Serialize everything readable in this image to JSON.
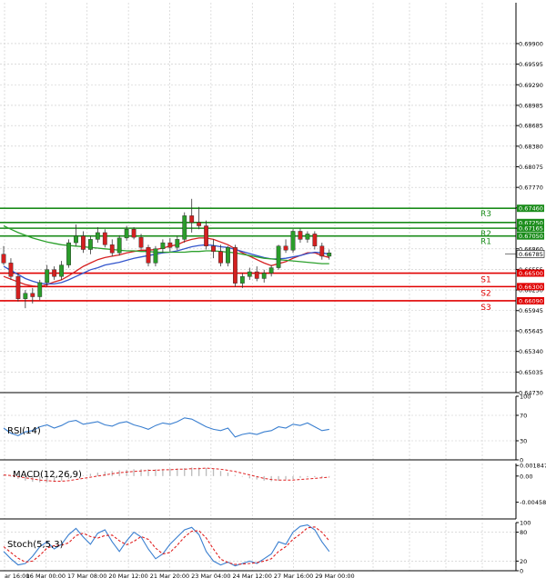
{
  "chart_data": [
    {
      "panel": "main",
      "type": "candlestick",
      "grid": true,
      "ylim": [
        0.6473,
        0.70505
      ],
      "y_ticks": [
        "0.69900",
        "0.69595",
        "0.69290",
        "0.68985",
        "0.68685",
        "0.68380",
        "0.68075",
        "0.67770",
        "0.67465",
        "0.67165",
        "0.66860",
        "0.66555",
        "0.66250",
        "0.65945",
        "0.65645",
        "0.65340",
        "0.65035",
        "0.64730"
      ],
      "x_labels": [
        "ar 16:00",
        "16 Mar 00:00",
        "17 Mar 08:00",
        "20 Mar 12:00",
        "21 Mar 20:00",
        "23 Mar 04:00",
        "24 Mar 12:00",
        "27 Mar 16:00",
        "29 Mar 00:00"
      ],
      "levels": [
        {
          "name": "R3",
          "value": 0.6746,
          "label": "0.67460",
          "color": "#1a8c1a"
        },
        {
          "name": "",
          "value": 0.6725,
          "label": "0.67250",
          "color": "#1a8c1a"
        },
        {
          "name": "R2",
          "value": 0.67165,
          "label": "0.67165",
          "color": "#1a8c1a"
        },
        {
          "name": "R1",
          "value": 0.6705,
          "label": "0.67050",
          "color": "#1a8c1a"
        },
        {
          "name": "S1",
          "value": 0.665,
          "label": "0.66500",
          "color": "#e00000"
        },
        {
          "name": "S2",
          "value": 0.663,
          "label": "0.66300",
          "color": "#e00000"
        },
        {
          "name": "S3",
          "value": 0.6609,
          "label": "0.66090",
          "color": "#e00000"
        }
      ],
      "last_price": {
        "value": 0.66785,
        "label": "0.66785"
      },
      "candles": [
        [
          0.6678,
          0.669,
          0.6662,
          0.6665
        ],
        [
          0.6665,
          0.6672,
          0.664,
          0.6645
        ],
        [
          0.6645,
          0.665,
          0.6608,
          0.6612
        ],
        [
          0.6612,
          0.6625,
          0.6598,
          0.662
        ],
        [
          0.662,
          0.6628,
          0.6605,
          0.6615
        ],
        [
          0.6615,
          0.664,
          0.661,
          0.6636
        ],
        [
          0.6636,
          0.6662,
          0.663,
          0.6655
        ],
        [
          0.6655,
          0.666,
          0.664,
          0.6645
        ],
        [
          0.6645,
          0.6668,
          0.664,
          0.6662
        ],
        [
          0.6662,
          0.67,
          0.6658,
          0.6695
        ],
        [
          0.6695,
          0.6722,
          0.669,
          0.6705
        ],
        [
          0.6705,
          0.6712,
          0.668,
          0.6685
        ],
        [
          0.6685,
          0.6705,
          0.6678,
          0.67
        ],
        [
          0.67,
          0.6718,
          0.6695,
          0.671
        ],
        [
          0.671,
          0.6715,
          0.6688,
          0.6692
        ],
        [
          0.6692,
          0.67,
          0.6675,
          0.668
        ],
        [
          0.668,
          0.6706,
          0.6676,
          0.6702
        ],
        [
          0.6702,
          0.672,
          0.6698,
          0.6715
        ],
        [
          0.6715,
          0.6718,
          0.67,
          0.6703
        ],
        [
          0.6703,
          0.6708,
          0.6685,
          0.6688
        ],
        [
          0.6688,
          0.6692,
          0.666,
          0.6665
        ],
        [
          0.6665,
          0.669,
          0.666,
          0.6686
        ],
        [
          0.6686,
          0.67,
          0.668,
          0.6695
        ],
        [
          0.6695,
          0.6702,
          0.6682,
          0.6688
        ],
        [
          0.6688,
          0.6705,
          0.6684,
          0.67
        ],
        [
          0.67,
          0.674,
          0.6695,
          0.6735
        ],
        [
          0.6735,
          0.676,
          0.671,
          0.6725
        ],
        [
          0.6725,
          0.6748,
          0.6715,
          0.672
        ],
        [
          0.672,
          0.6728,
          0.6685,
          0.669
        ],
        [
          0.669,
          0.67,
          0.6672,
          0.6682
        ],
        [
          0.6682,
          0.6692,
          0.666,
          0.6665
        ],
        [
          0.6665,
          0.669,
          0.666,
          0.6688
        ],
        [
          0.6688,
          0.6692,
          0.663,
          0.6635
        ],
        [
          0.6635,
          0.665,
          0.6628,
          0.6645
        ],
        [
          0.6645,
          0.6658,
          0.664,
          0.6652
        ],
        [
          0.6652,
          0.666,
          0.6638,
          0.6642
        ],
        [
          0.6642,
          0.6655,
          0.6636,
          0.665
        ],
        [
          0.665,
          0.6662,
          0.6645,
          0.6658
        ],
        [
          0.6658,
          0.6692,
          0.6655,
          0.669
        ],
        [
          0.669,
          0.67,
          0.668,
          0.6684
        ],
        [
          0.6684,
          0.6715,
          0.668,
          0.6712
        ],
        [
          0.6712,
          0.6716,
          0.6695,
          0.67
        ],
        [
          0.67,
          0.6712,
          0.6695,
          0.6708
        ],
        [
          0.6708,
          0.6712,
          0.6685,
          0.669
        ],
        [
          0.669,
          0.6695,
          0.667,
          0.6675
        ],
        [
          0.6675,
          0.6685,
          0.667,
          0.668
        ]
      ],
      "lines": [
        {
          "color": "#d62020",
          "values": [
            0.6645,
            0.6641,
            0.6637,
            0.6633,
            0.6631,
            0.663,
            0.6633,
            0.6637,
            0.664,
            0.6646,
            0.6653,
            0.666,
            0.6665,
            0.667,
            0.6673,
            0.6675,
            0.6677,
            0.668,
            0.6682,
            0.6684,
            0.6684,
            0.6685,
            0.6687,
            0.669,
            0.6692,
            0.6697,
            0.67,
            0.6702,
            0.6702,
            0.67,
            0.6696,
            0.6692,
            0.6686,
            0.668,
            0.6675,
            0.667,
            0.6665,
            0.6661,
            0.6664,
            0.6667,
            0.6672,
            0.6676,
            0.668,
            0.668,
            0.6676,
            0.6673
          ]
        },
        {
          "color": "#3355cc",
          "values": [
            0.666,
            0.6654,
            0.6648,
            0.6642,
            0.6638,
            0.6635,
            0.6634,
            0.6634,
            0.6636,
            0.664,
            0.6645,
            0.665,
            0.6655,
            0.6658,
            0.6662,
            0.6664,
            0.6666,
            0.6669,
            0.6672,
            0.6674,
            0.6676,
            0.6678,
            0.668,
            0.6681,
            0.6683,
            0.6686,
            0.6689,
            0.6691,
            0.6692,
            0.6691,
            0.6689,
            0.6688,
            0.6685,
            0.6682,
            0.6679,
            0.6676,
            0.6673,
            0.6671,
            0.6671,
            0.6672,
            0.6674,
            0.6676,
            0.6679,
            0.6681,
            0.668,
            0.6678
          ]
        },
        {
          "color": "#2ca02c",
          "values": [
            0.672,
            0.6715,
            0.671,
            0.6706,
            0.6702,
            0.6699,
            0.6696,
            0.6694,
            0.6692,
            0.6691,
            0.669,
            0.6689,
            0.6688,
            0.6687,
            0.6686,
            0.6685,
            0.6684,
            0.6683,
            0.6683,
            0.6682,
            0.6682,
            0.6681,
            0.6681,
            0.6681,
            0.6681,
            0.6681,
            0.6682,
            0.6682,
            0.6683,
            0.6683,
            0.6682,
            0.6681,
            0.668,
            0.6678,
            0.6676,
            0.6674,
            0.6672,
            0.6671,
            0.667,
            0.6669,
            0.6668,
            0.6667,
            0.6666,
            0.6665,
            0.6664,
            0.6664
          ]
        }
      ]
    },
    {
      "panel": "rsi",
      "type": "line",
      "title": "RSI(14)",
      "ylim": [
        0,
        100
      ],
      "y_ticks": [
        "100",
        "70",
        "30",
        "0"
      ],
      "levels": [
        70,
        30
      ],
      "series": [
        {
          "color": "#3a7fd0",
          "values": [
            50,
            42,
            38,
            44,
            46,
            52,
            55,
            50,
            54,
            60,
            62,
            56,
            58,
            60,
            55,
            53,
            58,
            60,
            55,
            52,
            48,
            54,
            58,
            56,
            60,
            66,
            64,
            58,
            52,
            48,
            46,
            50,
            36,
            40,
            42,
            40,
            44,
            46,
            52,
            50,
            56,
            54,
            58,
            52,
            46,
            48
          ]
        }
      ]
    },
    {
      "panel": "macd",
      "type": "bar",
      "title": "MACD(12,26,9)",
      "ylim": [
        -0.0075,
        0.0022
      ],
      "y_ticks": [
        "0.001847",
        "0.00",
        "-0.00458"
      ],
      "histogram": [
        0.0002,
        -0.0001,
        -0.0005,
        -0.0008,
        -0.001,
        -0.0011,
        -0.0011,
        -0.001,
        -0.0008,
        -0.0005,
        -0.0002,
        0.0001,
        0.0004,
        0.0006,
        0.0008,
        0.0009,
        0.001,
        0.0011,
        0.0012,
        0.0012,
        0.0012,
        0.0012,
        0.0012,
        0.0013,
        0.0013,
        0.0014,
        0.0015,
        0.0015,
        0.0014,
        0.0012,
        0.0009,
        0.0006,
        0.0002,
        -0.0001,
        -0.0004,
        -0.0006,
        -0.0008,
        -0.0009,
        -0.0008,
        -0.0006,
        -0.0005,
        -0.0003,
        -0.0002,
        -0.0002,
        -0.0002,
        -0.0001
      ],
      "signal": [
        0.0002,
        0.0001,
        -0.0001,
        -0.0003,
        -0.0005,
        -0.0007,
        -0.0008,
        -0.0009,
        -0.0009,
        -0.0008,
        -0.0006,
        -0.0004,
        -0.0002,
        0.0,
        0.0002,
        0.0004,
        0.0006,
        0.0007,
        0.0008,
        0.0009,
        0.001,
        0.001,
        0.0011,
        0.0011,
        0.0012,
        0.0012,
        0.0013,
        0.0013,
        0.0014,
        0.0013,
        0.0012,
        0.001,
        0.0008,
        0.0005,
        0.0002,
        -0.0001,
        -0.0004,
        -0.0006,
        -0.0007,
        -0.0007,
        -0.0007,
        -0.0006,
        -0.0005,
        -0.0004,
        -0.0003,
        -0.0002
      ]
    },
    {
      "panel": "stoch",
      "type": "line",
      "title": "Stoch(5,5,3)",
      "ylim": [
        0,
        100
      ],
      "y_ticks": [
        "100",
        "80",
        "20",
        "0"
      ],
      "levels": [
        80,
        20
      ],
      "series": [
        {
          "color": "#3a7fd0",
          "values": [
            40,
            25,
            12,
            15,
            30,
            50,
            60,
            45,
            55,
            75,
            88,
            70,
            55,
            78,
            85,
            60,
            40,
            62,
            80,
            70,
            45,
            25,
            35,
            55,
            70,
            85,
            90,
            75,
            40,
            20,
            12,
            18,
            10,
            15,
            20,
            15,
            25,
            35,
            60,
            55,
            80,
            92,
            95,
            85,
            60,
            40
          ]
        },
        {
          "color": "#e02020",
          "values": [
            50,
            38,
            26,
            18,
            20,
            32,
            47,
            52,
            53,
            58,
            73,
            78,
            71,
            68,
            73,
            74,
            62,
            54,
            61,
            71,
            65,
            47,
            35,
            38,
            53,
            70,
            82,
            83,
            68,
            45,
            24,
            17,
            13,
            14,
            15,
            17,
            20,
            25,
            40,
            50,
            65,
            76,
            89,
            91,
            80,
            62
          ]
        }
      ]
    }
  ]
}
